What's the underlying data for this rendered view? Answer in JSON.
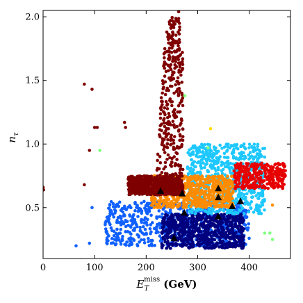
{
  "chart_data": {
    "type": "scatter",
    "title": "",
    "xlabel": {
      "main": "E",
      "sub": "T",
      "sup": "miss",
      "unit": " (GeV)"
    },
    "ylabel": {
      "main": "n",
      "sub": "τ"
    },
    "xlim": [
      0,
      480
    ],
    "ylim": [
      0.1,
      2.05
    ],
    "xticks": [
      "0",
      "100",
      "200",
      "300",
      "400"
    ],
    "xtick_values": [
      0,
      100,
      200,
      300,
      400
    ],
    "yticks": [
      "0.5",
      "1.0",
      "1.5",
      "2.0"
    ],
    "ytick_values": [
      0.5,
      1.0,
      1.5,
      2.0
    ],
    "grid": false,
    "colormap": "jet",
    "colors": {
      "darkred": "#7f0000",
      "red": "#e60000",
      "orange": "#ff8c00",
      "yellow": "#ffdd00",
      "lightgreen": "#80ff80",
      "cyan": "#1ec8ff",
      "blue": "#1060ff",
      "darkblue": "#00007f",
      "marker": "#000000"
    },
    "clusters": [
      {
        "name": "darkred-spine",
        "color": "darkred",
        "x": [
          205,
          305
        ],
        "y": [
          0.6,
          1.75
        ],
        "density": "medium"
      },
      {
        "name": "darkred-tail",
        "color": "darkred",
        "x": [
          240,
          265
        ],
        "y": [
          1.75,
          2.0
        ],
        "density": "sparse"
      },
      {
        "name": "darkred-band",
        "color": "darkred",
        "x": [
          165,
          270
        ],
        "y": [
          0.6,
          0.75
        ],
        "density": "dense"
      },
      {
        "name": "orange-band",
        "color": "orange",
        "x": [
          210,
          370
        ],
        "y": [
          0.5,
          0.75
        ],
        "density": "dense"
      },
      {
        "name": "red-right",
        "color": "red",
        "x": [
          370,
          470
        ],
        "y": [
          0.65,
          0.85
        ],
        "density": "medium"
      },
      {
        "name": "cyan-right",
        "color": "cyan",
        "x": [
          280,
          430
        ],
        "y": [
          0.45,
          1.0
        ],
        "density": "dense"
      },
      {
        "name": "blue-low",
        "color": "blue",
        "x": [
          120,
          400
        ],
        "y": [
          0.2,
          0.55
        ],
        "density": "dense"
      },
      {
        "name": "darkblue-core",
        "color": "darkblue",
        "x": [
          230,
          390
        ],
        "y": [
          0.18,
          0.45
        ],
        "density": "dense"
      }
    ],
    "outliers": [
      {
        "x": 0,
        "y": 0.66,
        "color": "darkred"
      },
      {
        "x": 1,
        "y": 0.64,
        "color": "darkred"
      },
      {
        "x": 80,
        "y": 1.47,
        "color": "darkred"
      },
      {
        "x": 95,
        "y": 1.43,
        "color": "darkred"
      },
      {
        "x": 100,
        "y": 1.13,
        "color": "darkred"
      },
      {
        "x": 105,
        "y": 1.13,
        "color": "darkred"
      },
      {
        "x": 110,
        "y": 0.95,
        "color": "lightgreen"
      },
      {
        "x": 80,
        "y": 0.68,
        "color": "darkred"
      },
      {
        "x": 95,
        "y": 0.5,
        "color": "blue"
      },
      {
        "x": 90,
        "y": 0.95,
        "color": "darkred"
      },
      {
        "x": 158,
        "y": 1.17,
        "color": "darkred"
      },
      {
        "x": 160,
        "y": 1.13,
        "color": "darkred"
      },
      {
        "x": 245,
        "y": 1.96,
        "color": "darkred"
      },
      {
        "x": 263,
        "y": 2.04,
        "color": "darkred"
      },
      {
        "x": 265,
        "y": 1.92,
        "color": "darkred"
      },
      {
        "x": 240,
        "y": 1.88,
        "color": "darkred"
      },
      {
        "x": 275,
        "y": 1.38,
        "color": "lightgreen"
      },
      {
        "x": 325,
        "y": 1.12,
        "color": "yellow"
      },
      {
        "x": 320,
        "y": 0.97,
        "color": "lightgreen"
      },
      {
        "x": 430,
        "y": 0.82,
        "color": "red"
      },
      {
        "x": 440,
        "y": 0.74,
        "color": "red"
      },
      {
        "x": 445,
        "y": 0.52,
        "color": "orange"
      },
      {
        "x": 430,
        "y": 0.3,
        "color": "lightgreen"
      },
      {
        "x": 445,
        "y": 0.25,
        "color": "lightgreen"
      },
      {
        "x": 440,
        "y": 0.3,
        "color": "lightgreen"
      },
      {
        "x": 445,
        "y": 0.72,
        "color": "red"
      },
      {
        "x": 468,
        "y": 0.82,
        "color": "red"
      },
      {
        "x": 470,
        "y": 0.79,
        "color": "red"
      },
      {
        "x": 64,
        "y": 0.2,
        "color": "blue"
      },
      {
        "x": 90,
        "y": 0.22,
        "color": "blue"
      }
    ],
    "markers": [
      {
        "x": 228,
        "y": 0.63
      },
      {
        "x": 270,
        "y": 0.61
      },
      {
        "x": 340,
        "y": 0.65
      },
      {
        "x": 340,
        "y": 0.58
      },
      {
        "x": 367,
        "y": 0.51
      },
      {
        "x": 383,
        "y": 0.55
      },
      {
        "x": 274,
        "y": 0.46
      },
      {
        "x": 340,
        "y": 0.43
      },
      {
        "x": 254,
        "y": 0.26
      }
    ]
  }
}
